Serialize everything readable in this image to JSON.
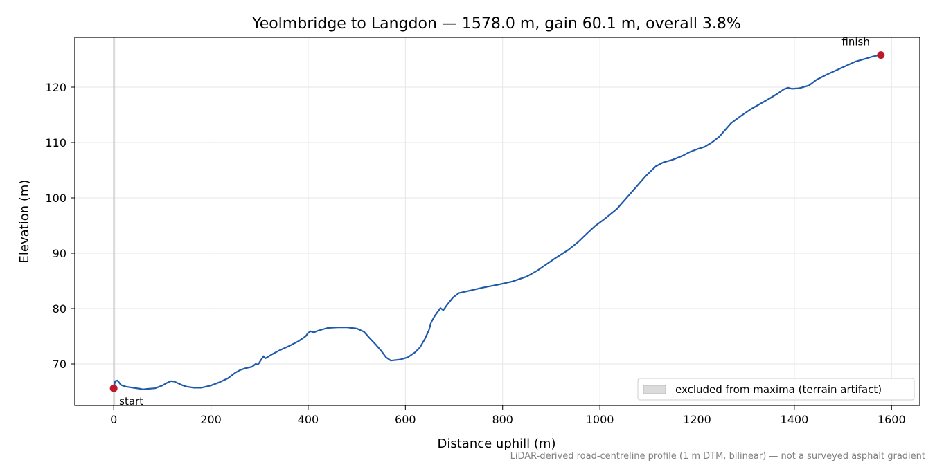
{
  "chart_data": {
    "type": "line",
    "title": "Yeolmbridge to Langdon — 1578.0 m, gain 60.1 m, overall 3.8%",
    "xlabel": "Distance uphill (m)",
    "ylabel": "Elevation (m)",
    "xlim": [
      -80,
      1658
    ],
    "ylim": [
      62.5,
      129.0
    ],
    "xticks": [
      0,
      200,
      400,
      600,
      800,
      1000,
      1200,
      1400,
      1600
    ],
    "yticks": [
      70,
      80,
      90,
      100,
      110,
      120
    ],
    "grid": true,
    "legend": {
      "placement": "lower-right",
      "entries": [
        "excluded from maxima (terrain artifact)"
      ]
    },
    "excluded_band": {
      "x": [
        0,
        3
      ]
    },
    "series": [
      {
        "color": "#1f5aaa",
        "points": [
          [
            0,
            65.6
          ],
          [
            3,
            66.9
          ],
          [
            8,
            67.0
          ],
          [
            15,
            66.2
          ],
          [
            25,
            65.9
          ],
          [
            40,
            65.7
          ],
          [
            55,
            65.5
          ],
          [
            60,
            65.4
          ],
          [
            70,
            65.5
          ],
          [
            85,
            65.6
          ],
          [
            100,
            66.1
          ],
          [
            110,
            66.6
          ],
          [
            118,
            66.9
          ],
          [
            125,
            66.8
          ],
          [
            140,
            66.2
          ],
          [
            150,
            65.9
          ],
          [
            165,
            65.7
          ],
          [
            180,
            65.7
          ],
          [
            200,
            66.1
          ],
          [
            215,
            66.6
          ],
          [
            235,
            67.4
          ],
          [
            250,
            68.4
          ],
          [
            260,
            68.9
          ],
          [
            270,
            69.2
          ],
          [
            285,
            69.5
          ],
          [
            292,
            70.0
          ],
          [
            297,
            69.9
          ],
          [
            303,
            70.7
          ],
          [
            308,
            71.4
          ],
          [
            312,
            71.0
          ],
          [
            325,
            71.7
          ],
          [
            340,
            72.4
          ],
          [
            360,
            73.2
          ],
          [
            380,
            74.1
          ],
          [
            395,
            75.0
          ],
          [
            400,
            75.6
          ],
          [
            405,
            75.9
          ],
          [
            412,
            75.7
          ],
          [
            420,
            76.0
          ],
          [
            440,
            76.5
          ],
          [
            460,
            76.6
          ],
          [
            480,
            76.6
          ],
          [
            500,
            76.4
          ],
          [
            515,
            75.8
          ],
          [
            525,
            74.8
          ],
          [
            540,
            73.4
          ],
          [
            550,
            72.4
          ],
          [
            560,
            71.2
          ],
          [
            570,
            70.6
          ],
          [
            590,
            70.8
          ],
          [
            605,
            71.2
          ],
          [
            620,
            72.1
          ],
          [
            630,
            73.0
          ],
          [
            640,
            74.5
          ],
          [
            648,
            76.0
          ],
          [
            653,
            77.5
          ],
          [
            660,
            78.6
          ],
          [
            668,
            79.6
          ],
          [
            672,
            80.1
          ],
          [
            678,
            79.7
          ],
          [
            686,
            80.7
          ],
          [
            698,
            82.0
          ],
          [
            710,
            82.8
          ],
          [
            730,
            83.2
          ],
          [
            760,
            83.8
          ],
          [
            790,
            84.3
          ],
          [
            820,
            84.9
          ],
          [
            850,
            85.8
          ],
          [
            870,
            86.8
          ],
          [
            890,
            88.0
          ],
          [
            910,
            89.2
          ],
          [
            935,
            90.6
          ],
          [
            955,
            92.0
          ],
          [
            975,
            93.7
          ],
          [
            990,
            94.9
          ],
          [
            1010,
            96.2
          ],
          [
            1035,
            98.0
          ],
          [
            1055,
            100.0
          ],
          [
            1075,
            102.0
          ],
          [
            1095,
            104.0
          ],
          [
            1115,
            105.7
          ],
          [
            1130,
            106.4
          ],
          [
            1150,
            106.9
          ],
          [
            1170,
            107.6
          ],
          [
            1185,
            108.3
          ],
          [
            1200,
            108.8
          ],
          [
            1215,
            109.2
          ],
          [
            1230,
            110.0
          ],
          [
            1245,
            111.0
          ],
          [
            1255,
            112.0
          ],
          [
            1270,
            113.5
          ],
          [
            1290,
            114.8
          ],
          [
            1310,
            116.0
          ],
          [
            1330,
            117.0
          ],
          [
            1350,
            118.0
          ],
          [
            1365,
            118.8
          ],
          [
            1378,
            119.6
          ],
          [
            1387,
            119.9
          ],
          [
            1395,
            119.7
          ],
          [
            1410,
            119.8
          ],
          [
            1422,
            120.1
          ],
          [
            1430,
            120.3
          ],
          [
            1445,
            121.3
          ],
          [
            1465,
            122.2
          ],
          [
            1485,
            123.0
          ],
          [
            1505,
            123.8
          ],
          [
            1525,
            124.6
          ],
          [
            1545,
            125.1
          ],
          [
            1560,
            125.5
          ],
          [
            1570,
            125.7
          ],
          [
            1578,
            125.8
          ]
        ]
      }
    ],
    "markers": [
      {
        "label": "start",
        "x": 0,
        "y": 65.6,
        "color": "#c0182b"
      },
      {
        "label": "finish",
        "x": 1578,
        "y": 125.8,
        "color": "#c0182b"
      }
    ]
  },
  "footnote": "LiDAR-derived road-centreline profile (1 m DTM, bilinear) — not a surveyed asphalt gradient"
}
